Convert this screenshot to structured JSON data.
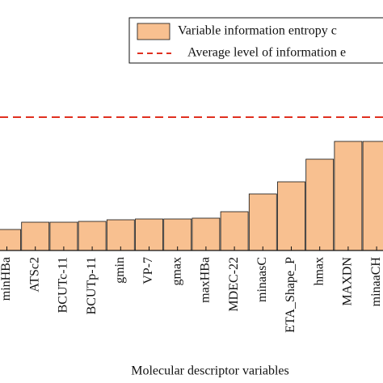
{
  "chart_data": {
    "type": "bar",
    "xlabel": "Molecular descriptor variables",
    "categories": [
      "minHBa",
      "ATSc2",
      "BCUTc-11",
      "BCUTp-11",
      "gmin",
      "VP-7",
      "gmax",
      "maxHBa",
      "MDEC-22",
      "minaasC",
      "ETA_Shape_P",
      "hmax",
      "MAXDN",
      "minaaCH"
    ],
    "series": [
      {
        "name": "Variable information entropy c",
        "color": "#f8c090",
        "values": [
          26,
          35,
          35,
          36,
          38,
          39,
          39,
          40,
          48,
          70,
          85,
          113,
          135,
          135
        ]
      }
    ],
    "average_line": {
      "name": "Average level of information e",
      "value": 165,
      "color": "#e03020"
    },
    "ylim": [
      0,
      310
    ]
  }
}
